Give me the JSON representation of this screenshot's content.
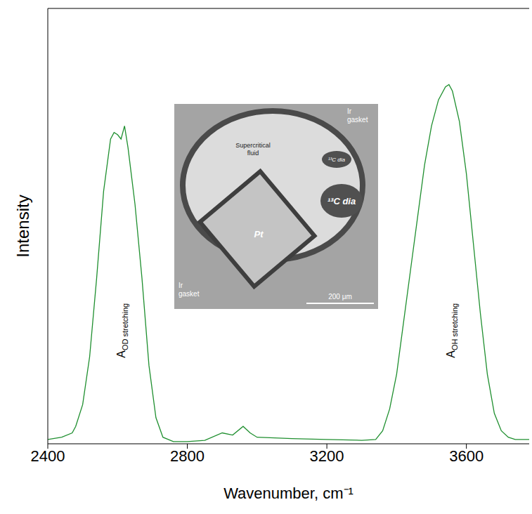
{
  "chart_data": {
    "type": "line",
    "x_label": "Wavenumber, cm⁻¹",
    "y_label": "Intensity",
    "xlim": [
      2400,
      3780
    ],
    "xticks": [
      2400,
      2800,
      3200,
      3600
    ],
    "ylim": [
      0,
      100
    ],
    "tick_labels": "x",
    "grid": false,
    "color": "#1f8f2f",
    "x": [
      2400,
      2440,
      2470,
      2480,
      2500,
      2520,
      2540,
      2560,
      2580,
      2590,
      2600,
      2610,
      2620,
      2630,
      2650,
      2670,
      2690,
      2710,
      2730,
      2760,
      2800,
      2850,
      2900,
      2930,
      2960,
      2980,
      3000,
      3100,
      3200,
      3300,
      3340,
      3360,
      3380,
      3400,
      3420,
      3440,
      3460,
      3480,
      3500,
      3520,
      3540,
      3550,
      3560,
      3580,
      3600,
      3620,
      3640,
      3660,
      3680,
      3700,
      3720,
      3740,
      3780
    ],
    "values": [
      1.0,
      1.5,
      2.5,
      4,
      9,
      20,
      38,
      58,
      70,
      71.5,
      71,
      70,
      73,
      68,
      55,
      38,
      18,
      6,
      1.5,
      0.5,
      0.5,
      0.8,
      2.5,
      2,
      4,
      2.5,
      1.5,
      1.2,
      1.0,
      0.8,
      1,
      3,
      8,
      16,
      28,
      40,
      52,
      64,
      73,
      79,
      82,
      82.5,
      81,
      74,
      62,
      46,
      30,
      16,
      7,
      3,
      1.5,
      1,
      1
    ],
    "annotations": [
      {
        "text": "A",
        "subscript": "OD stretching",
        "x": 2610,
        "y": 26
      },
      {
        "text": "A",
        "subscript": "OH stretching",
        "x": 3555,
        "y": 26
      }
    ],
    "inset": {
      "labels": [
        "Supercritical fluid",
        "Ir gasket",
        "Ir gasket",
        "¹³C dia",
        "¹³C dia",
        "Pt",
        "200 μm"
      ]
    }
  }
}
